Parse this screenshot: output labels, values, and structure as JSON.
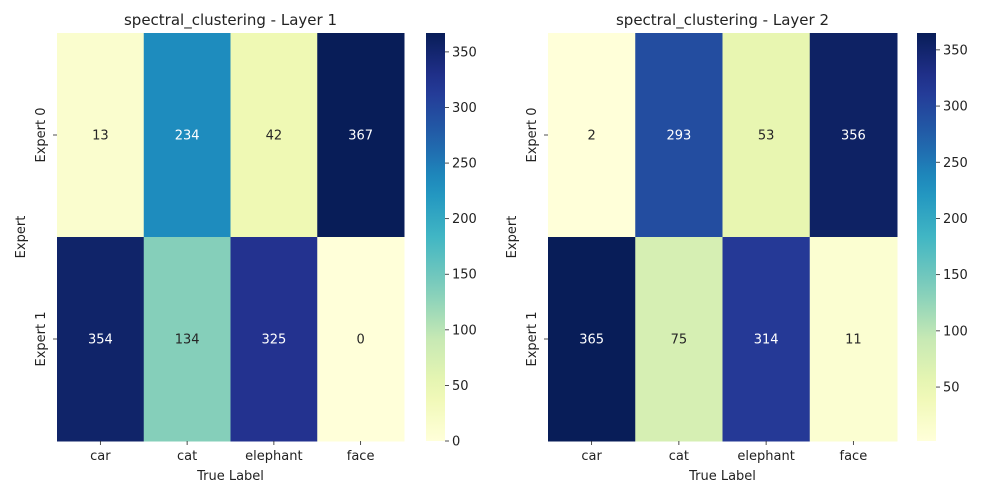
{
  "chart_data": [
    {
      "type": "heatmap",
      "title": "spectral_clustering - Layer 1",
      "xlabel": "True Label",
      "ylabel": "Expert",
      "x_categories": [
        "car",
        "cat",
        "elephant",
        "face"
      ],
      "y_categories": [
        "Expert 0",
        "Expert 1"
      ],
      "values": [
        [
          13,
          234,
          42,
          367
        ],
        [
          354,
          134,
          325,
          0
        ]
      ],
      "colorbar": {
        "min": 0,
        "max": 367,
        "ticks": [
          0,
          50,
          100,
          150,
          200,
          250,
          300,
          350
        ]
      },
      "colormap": "YlGnBu"
    },
    {
      "type": "heatmap",
      "title": "spectral_clustering - Layer 2",
      "xlabel": "True Label",
      "ylabel": "Expert",
      "x_categories": [
        "car",
        "cat",
        "elephant",
        "face"
      ],
      "y_categories": [
        "Expert 0",
        "Expert 1"
      ],
      "values": [
        [
          2,
          293,
          53,
          356
        ],
        [
          365,
          75,
          314,
          11
        ]
      ],
      "colorbar": {
        "min": 2,
        "max": 365,
        "ticks": [
          50,
          100,
          150,
          200,
          250,
          300,
          350
        ]
      },
      "colormap": "YlGnBu"
    }
  ]
}
